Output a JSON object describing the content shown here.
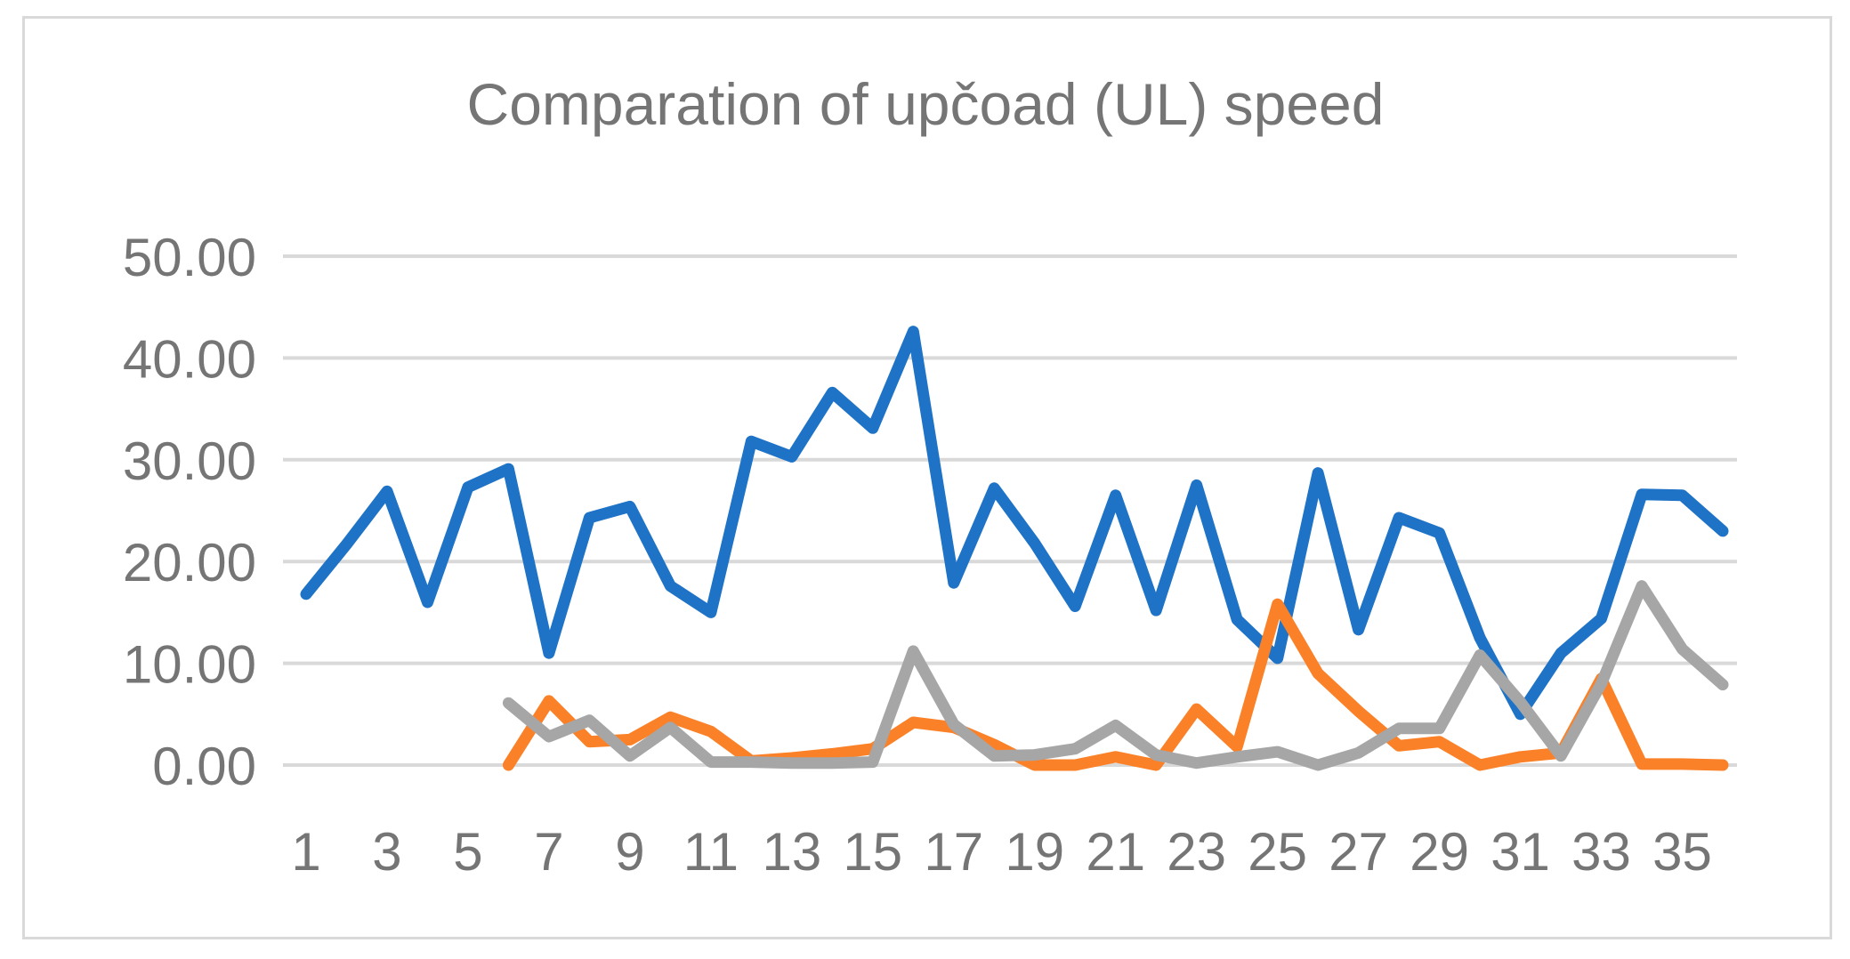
{
  "chart_data": {
    "type": "line",
    "title": "Comparation of upčoad (UL) speed",
    "xlabel": "",
    "ylabel": "",
    "ylim": [
      0,
      50
    ],
    "yticks": [
      "0.00",
      "10.00",
      "20.00",
      "30.00",
      "40.00",
      "50.00"
    ],
    "grid": true,
    "x": [
      1,
      2,
      3,
      4,
      5,
      6,
      7,
      8,
      9,
      10,
      11,
      12,
      13,
      14,
      15,
      16,
      17,
      18,
      19,
      20,
      21,
      22,
      23,
      24,
      25,
      26,
      27,
      28,
      29,
      30,
      31,
      32,
      33,
      34,
      35,
      36
    ],
    "xtick_labels": [
      "1",
      "3",
      "5",
      "7",
      "9",
      "11",
      "13",
      "15",
      "17",
      "19",
      "21",
      "23",
      "25",
      "27",
      "29",
      "31",
      "33",
      "35"
    ],
    "xtick_positions": [
      1,
      3,
      5,
      7,
      9,
      11,
      13,
      15,
      17,
      19,
      21,
      23,
      25,
      27,
      29,
      31,
      33,
      35
    ],
    "series": [
      {
        "color": "#1f73c6",
        "values": [
          16.8,
          21.7,
          26.9,
          16.0,
          27.3,
          29.1,
          11.0,
          24.3,
          25.4,
          17.6,
          15.0,
          31.8,
          30.3,
          36.6,
          33.1,
          42.6,
          17.9,
          27.2,
          21.8,
          15.6,
          26.5,
          15.2,
          27.5,
          14.3,
          10.5,
          28.7,
          13.3,
          24.3,
          22.8,
          12.5,
          5.0,
          11.0,
          14.4,
          26.6,
          26.5,
          23.0
        ]
      },
      {
        "color": "#fb8128",
        "values": [
          null,
          null,
          null,
          null,
          null,
          0.0,
          6.3,
          2.3,
          2.5,
          4.7,
          3.3,
          0.4,
          0.7,
          1.1,
          1.6,
          4.2,
          3.7,
          2.0,
          0.0,
          0.0,
          0.8,
          0.0,
          5.5,
          1.8,
          15.8,
          9.0,
          5.3,
          1.9,
          2.3,
          0.0,
          0.8,
          1.2,
          8.5,
          0.1,
          0.1,
          0.0
        ]
      },
      {
        "color": "#a6a6a6",
        "values": [
          null,
          null,
          null,
          null,
          null,
          6.1,
          2.8,
          4.4,
          0.9,
          3.7,
          0.3,
          0.3,
          0.2,
          0.2,
          0.3,
          11.2,
          4.0,
          0.9,
          1.0,
          1.6,
          3.9,
          1.0,
          0.2,
          0.8,
          1.3,
          0.0,
          1.2,
          3.6,
          3.6,
          10.8,
          6.2,
          0.9,
          8.0,
          17.6,
          11.4,
          7.9
        ]
      }
    ]
  }
}
